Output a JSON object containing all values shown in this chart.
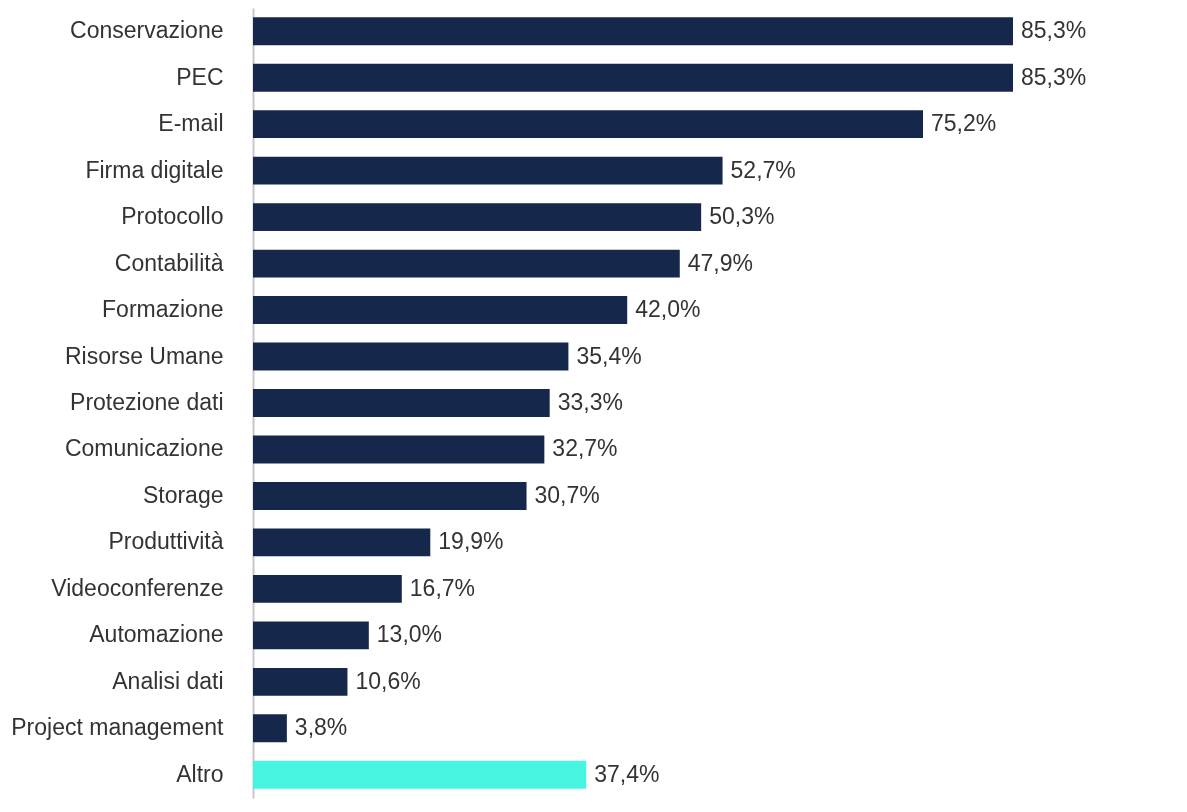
{
  "chart_data": {
    "type": "bar",
    "orientation": "horizontal",
    "categories": [
      "Conservazione",
      "PEC",
      "E-mail",
      "Firma digitale",
      "Protocollo",
      "Contabilità",
      "Formazione",
      "Risorse Umane",
      "Protezione dati",
      "Comunicazione",
      "Storage",
      "Produttività",
      "Videoconferenze",
      "Automazione",
      "Analisi dati",
      "Project management",
      "Altro"
    ],
    "values": [
      85.3,
      85.3,
      75.2,
      52.7,
      50.3,
      47.9,
      42.0,
      35.4,
      33.3,
      32.7,
      30.7,
      19.9,
      16.7,
      13.0,
      10.6,
      3.8,
      37.4
    ],
    "value_labels": [
      "85,3%",
      "85,3%",
      "75,2%",
      "52,7%",
      "50,3%",
      "47,9%",
      "42,0%",
      "35,4%",
      "33,3%",
      "32,7%",
      "30,7%",
      "19,9%",
      "16,7%",
      "13,0%",
      "10,6%",
      "3,8%",
      "37,4%"
    ],
    "colors": [
      "#15284b",
      "#15284b",
      "#15284b",
      "#15284b",
      "#15284b",
      "#15284b",
      "#15284b",
      "#15284b",
      "#15284b",
      "#15284b",
      "#15284b",
      "#15284b",
      "#15284b",
      "#15284b",
      "#15284b",
      "#15284b",
      "#45f5e0"
    ]
  }
}
